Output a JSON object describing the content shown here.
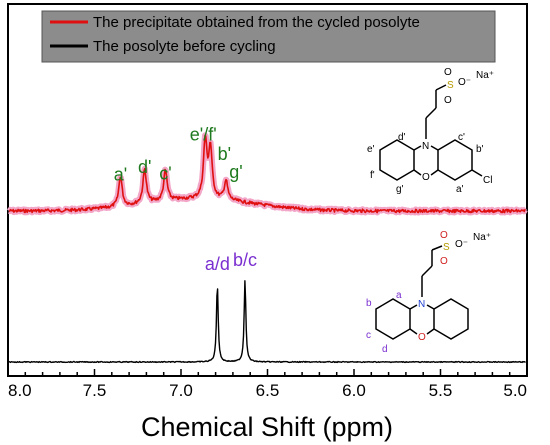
{
  "chart_data": {
    "type": "line",
    "xlabel": "Chemical Shift (ppm)",
    "xlim": [
      8.0,
      5.0
    ],
    "x_reversed": true,
    "x_ticks": [
      "8.0",
      "7.5",
      "7.0",
      "6.5",
      "6.0",
      "5.5",
      "5.0"
    ],
    "grid": false,
    "legend_position": "top",
    "series": [
      {
        "name": "The precipitate obtained from the cycled posolyte",
        "color": "#e01010",
        "baseline": 0.0,
        "peaks": [
          {
            "x": 7.35,
            "height": 0.55,
            "label": "a'"
          },
          {
            "x": 7.21,
            "height": 0.62,
            "label": "d'"
          },
          {
            "x": 7.09,
            "height": 0.55,
            "label": "c'"
          },
          {
            "x": 6.86,
            "height": 1.05,
            "label": "e'/f'"
          },
          {
            "x": 6.83,
            "height": 0.9,
            "label": "b'"
          },
          {
            "x": 6.74,
            "height": 0.35,
            "label": "g'"
          }
        ]
      },
      {
        "name": "The posolyte before cycling",
        "color": "#000000",
        "baseline": 0.0,
        "peaks": [
          {
            "x": 6.79,
            "height": 1.9,
            "label": "a/d"
          },
          {
            "x": 6.63,
            "height": 2.0,
            "label": "b/c"
          }
        ]
      }
    ]
  },
  "structures": {
    "top": {
      "atoms": {
        "n": "N",
        "o": "O",
        "cl": "Cl",
        "s": "S",
        "o1": "O",
        "o2": "O",
        "ominus": "O⁻",
        "na": "Na⁺"
      },
      "letters": [
        "d'",
        "c'",
        "e'",
        "b'",
        "f'",
        "g'",
        "a'"
      ],
      "letter_color": "#000000"
    },
    "bottom": {
      "atoms": {
        "n": "N",
        "o": "O",
        "s": "S",
        "o1": "O",
        "o2": "O",
        "ominus": "O⁻",
        "na": "Na⁺"
      },
      "letters": [
        "a",
        "b",
        "c",
        "d"
      ],
      "letter_color": "#7a2fd0"
    }
  }
}
